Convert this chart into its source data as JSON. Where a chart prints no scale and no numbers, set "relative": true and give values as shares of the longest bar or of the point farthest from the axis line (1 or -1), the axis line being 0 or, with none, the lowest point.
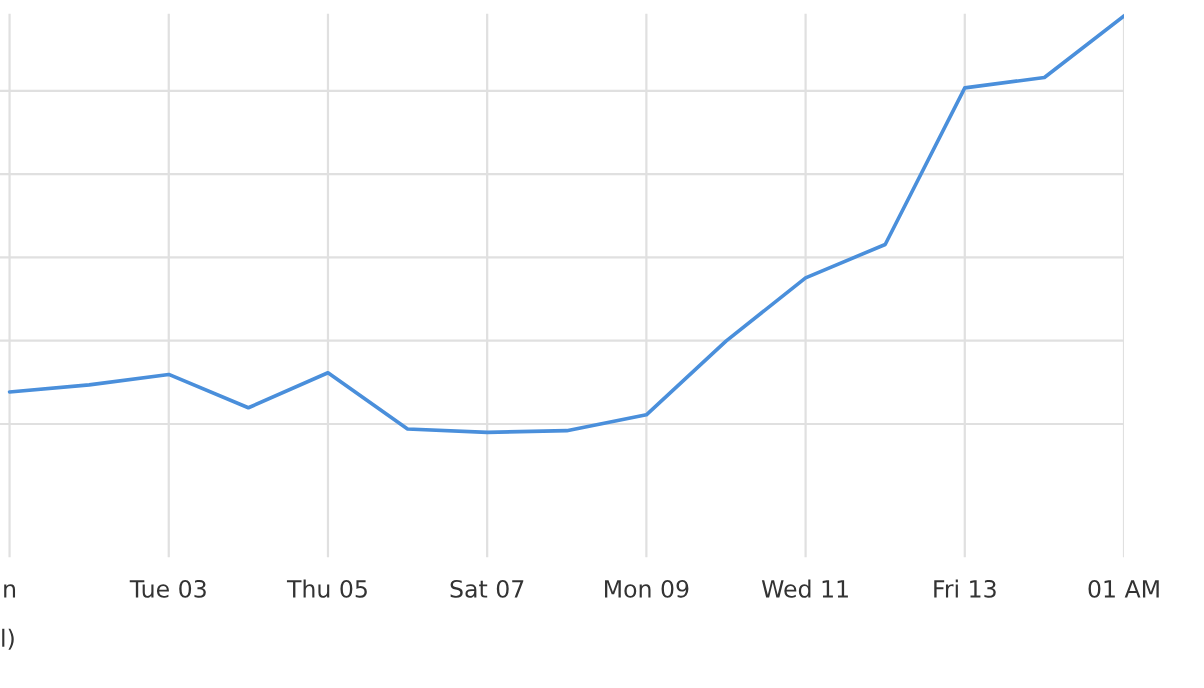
{
  "chart_data": {
    "type": "line",
    "relative": true,
    "grid": true,
    "color": "#4a8fdb",
    "categories": [
      "n",
      null,
      "Tue 03",
      null,
      "Thu 05",
      null,
      "Sat 07",
      null,
      "Mon 09",
      null,
      "Wed 11",
      null,
      "Fri 13",
      null,
      "01 AM"
    ],
    "values": [
      0.097,
      0.114,
      0.139,
      0.059,
      0.143,
      0.008,
      0,
      0.004,
      0.042,
      0.219,
      0.371,
      0.451,
      0.827,
      0.852,
      1
    ],
    "annotations": [
      "l)"
    ]
  }
}
